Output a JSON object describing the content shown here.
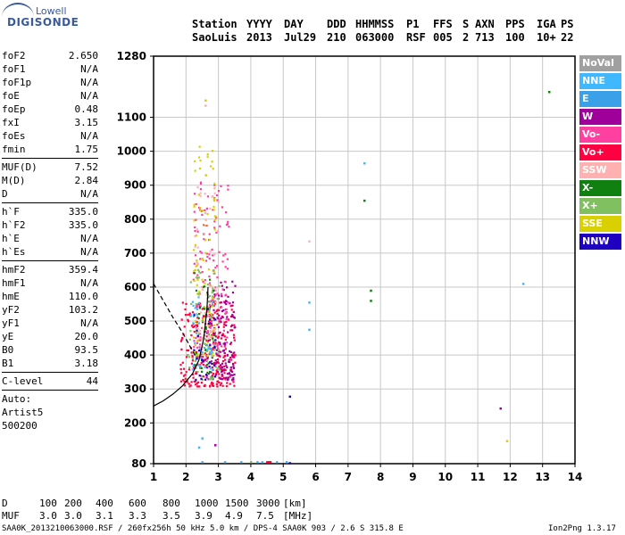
{
  "logo": {
    "line1": "Lowell",
    "line2": "DIGISONDE"
  },
  "header": {
    "row1": [
      "Station",
      "YYYY",
      "DAY",
      "DDD",
      "HHMMSS",
      "P1",
      "FFS",
      "S",
      "AXN",
      "PPS",
      "IGA",
      "PS"
    ],
    "row2": [
      "SaoLuis",
      "2013",
      "Jul29",
      "210",
      "063000",
      "RSF",
      "005",
      "2",
      "713",
      "100",
      "10+",
      "22"
    ]
  },
  "params": {
    "group1": [
      {
        "name": "foF2",
        "value": "2.650"
      },
      {
        "name": "foF1",
        "value": "N/A"
      },
      {
        "name": "foF1p",
        "value": "N/A"
      },
      {
        "name": "foE",
        "value": "N/A"
      },
      {
        "name": "foEp",
        "value": "0.48"
      },
      {
        "name": "fxI",
        "value": "3.15"
      },
      {
        "name": "foEs",
        "value": "N/A"
      },
      {
        "name": "fmin",
        "value": "1.75"
      }
    ],
    "group2": [
      {
        "name": "MUF(D)",
        "value": "7.52"
      },
      {
        "name": "M(D)",
        "value": "2.84"
      },
      {
        "name": "D",
        "value": "N/A"
      }
    ],
    "group3": [
      {
        "name": "h`F",
        "value": "335.0"
      },
      {
        "name": "h`F2",
        "value": "335.0"
      },
      {
        "name": "h`E",
        "value": "N/A"
      },
      {
        "name": "h`Es",
        "value": "N/A"
      }
    ],
    "group4": [
      {
        "name": "hmF2",
        "value": "359.4"
      },
      {
        "name": "hmF1",
        "value": "N/A"
      },
      {
        "name": "hmE",
        "value": "110.0"
      },
      {
        "name": "yF2",
        "value": "103.2"
      },
      {
        "name": "yF1",
        "value": "N/A"
      },
      {
        "name": "yE",
        "value": "20.0"
      },
      {
        "name": "B0",
        "value": "93.5"
      },
      {
        "name": "B1",
        "value": "3.18"
      }
    ],
    "group5": [
      {
        "name": "C-level",
        "value": "44"
      }
    ],
    "auto": [
      "Auto:",
      "Artist5",
      "500200"
    ]
  },
  "legend": [
    {
      "label": "NoVal",
      "color": "#a0a0a0"
    },
    {
      "label": "NNE",
      "color": "#40b8ff"
    },
    {
      "label": "E",
      "color": "#3aa0e8"
    },
    {
      "label": "W",
      "color": "#a0009a"
    },
    {
      "label": "Vo-",
      "color": "#ff40a0"
    },
    {
      "label": "Vo+",
      "color": "#ff0040"
    },
    {
      "label": "SSW",
      "color": "#ffb0b0"
    },
    {
      "label": "X-",
      "color": "#108010"
    },
    {
      "label": "X+",
      "color": "#80c060"
    },
    {
      "label": "SSE",
      "color": "#d8d000"
    },
    {
      "label": "NNW",
      "color": "#2000c0"
    }
  ],
  "chart_data": {
    "type": "scatter",
    "xlim": [
      1,
      14
    ],
    "ylim": [
      80,
      1280
    ],
    "x_ticks": [
      "1",
      "2",
      "3",
      "4",
      "5",
      "6",
      "7",
      "8",
      "9",
      "10",
      "11",
      "12",
      "13",
      "14"
    ],
    "y_ticks": [
      "80",
      "200",
      "300",
      "400",
      "500",
      "600",
      "700",
      "800",
      "900",
      "1000",
      "1100",
      "1280"
    ],
    "grid": true,
    "clusters": [
      {
        "color": "#ff0040",
        "x_range": [
          1.8,
          3.5
        ],
        "y_range": [
          310,
          560
        ],
        "count": 260
      },
      {
        "color": "#a0009a",
        "x_range": [
          2.6,
          3.5
        ],
        "y_range": [
          330,
          620
        ],
        "count": 150
      },
      {
        "color": "#ff40a0",
        "x_range": [
          2.2,
          3.3
        ],
        "y_range": [
          420,
          930
        ],
        "count": 150
      },
      {
        "color": "#d8d000",
        "x_range": [
          2.2,
          2.9
        ],
        "y_range": [
          400,
          1020
        ],
        "count": 110
      },
      {
        "color": "#80c060",
        "x_range": [
          2.0,
          3.0
        ],
        "y_range": [
          330,
          700
        ],
        "count": 70
      },
      {
        "color": "#40b8ff",
        "x_range": [
          2.1,
          2.8
        ],
        "y_range": [
          360,
          600
        ],
        "count": 40
      },
      {
        "color": "#ffb0b0",
        "x_range": [
          2.2,
          3.0
        ],
        "y_range": [
          450,
          900
        ],
        "count": 50
      },
      {
        "color": "#2000c0",
        "x_range": [
          2.2,
          2.9
        ],
        "y_range": [
          330,
          560
        ],
        "count": 30
      },
      {
        "color": "#108010",
        "x_range": [
          2.2,
          2.9
        ],
        "y_range": [
          350,
          650
        ],
        "count": 25
      }
    ],
    "points": [
      {
        "x": 7.5,
        "y": 965,
        "color": "#40b8ff"
      },
      {
        "x": 7.5,
        "y": 855,
        "color": "#108010"
      },
      {
        "x": 7.7,
        "y": 590,
        "color": "#108010"
      },
      {
        "x": 7.7,
        "y": 560,
        "color": "#108010"
      },
      {
        "x": 5.8,
        "y": 555,
        "color": "#40b8ff"
      },
      {
        "x": 5.8,
        "y": 475,
        "color": "#40b8ff"
      },
      {
        "x": 5.8,
        "y": 735,
        "color": "#ffb0b0"
      },
      {
        "x": 5.2,
        "y": 278,
        "color": "#2000c0"
      },
      {
        "x": 12.4,
        "y": 610,
        "color": "#40b8ff"
      },
      {
        "x": 13.2,
        "y": 1175,
        "color": "#108010"
      },
      {
        "x": 11.7,
        "y": 243,
        "color": "#a0009a"
      },
      {
        "x": 11.9,
        "y": 147,
        "color": "#d8d000"
      },
      {
        "x": 2.6,
        "y": 1135,
        "color": "#ffb0b0"
      },
      {
        "x": 2.6,
        "y": 1150,
        "color": "#d8d000"
      },
      {
        "x": 2.5,
        "y": 155,
        "color": "#40b8ff"
      },
      {
        "x": 2.9,
        "y": 135,
        "color": "#a0009a"
      },
      {
        "x": 2.4,
        "y": 128,
        "color": "#40b8ff"
      },
      {
        "x": 2.5,
        "y": 85,
        "color": "#40b8ff"
      },
      {
        "x": 3.2,
        "y": 85,
        "color": "#40b8ff"
      },
      {
        "x": 3.7,
        "y": 85,
        "color": "#40b8ff"
      },
      {
        "x": 4.0,
        "y": 85,
        "color": "#80c060"
      },
      {
        "x": 4.2,
        "y": 85,
        "color": "#40b8ff"
      },
      {
        "x": 4.35,
        "y": 85,
        "color": "#40b8ff"
      },
      {
        "x": 4.5,
        "y": 85,
        "color": "#ff0040"
      },
      {
        "x": 4.55,
        "y": 85,
        "color": "#ff0040"
      },
      {
        "x": 4.6,
        "y": 85,
        "color": "#ff0040"
      },
      {
        "x": 4.8,
        "y": 85,
        "color": "#40b8ff"
      },
      {
        "x": 5.1,
        "y": 85,
        "color": "#40b8ff"
      },
      {
        "x": 5.2,
        "y": 82,
        "color": "#2000c0"
      }
    ],
    "profile_solid": {
      "x": [
        1.0,
        1.3,
        1.6,
        1.9,
        2.2,
        2.4,
        2.55,
        2.65,
        2.68
      ],
      "y": [
        250,
        265,
        285,
        310,
        345,
        385,
        450,
        540,
        600
      ]
    },
    "profile_dashed": {
      "x": [
        1.0,
        1.3,
        1.6,
        1.9,
        2.1,
        2.3
      ],
      "y": [
        610,
        560,
        510,
        465,
        430,
        395
      ]
    }
  },
  "footer": {
    "d_label": "D",
    "d_values": [
      "100",
      "200",
      "400",
      "600",
      "800",
      "1000",
      "1500",
      "3000",
      "[km]"
    ],
    "muf_label": "MUF",
    "muf_values": [
      "3.0",
      "3.0",
      "3.1",
      "3.3",
      "3.5",
      "3.9",
      "4.9",
      "7.5",
      "[MHz]"
    ],
    "info": "SAA0K_2013210063000.RSF / 260fx256h 50 kHz 5.0 km / DPS-4 SAA0K 903 / 2.6 S 315.8 E",
    "version": "Ion2Png 1.3.17"
  }
}
